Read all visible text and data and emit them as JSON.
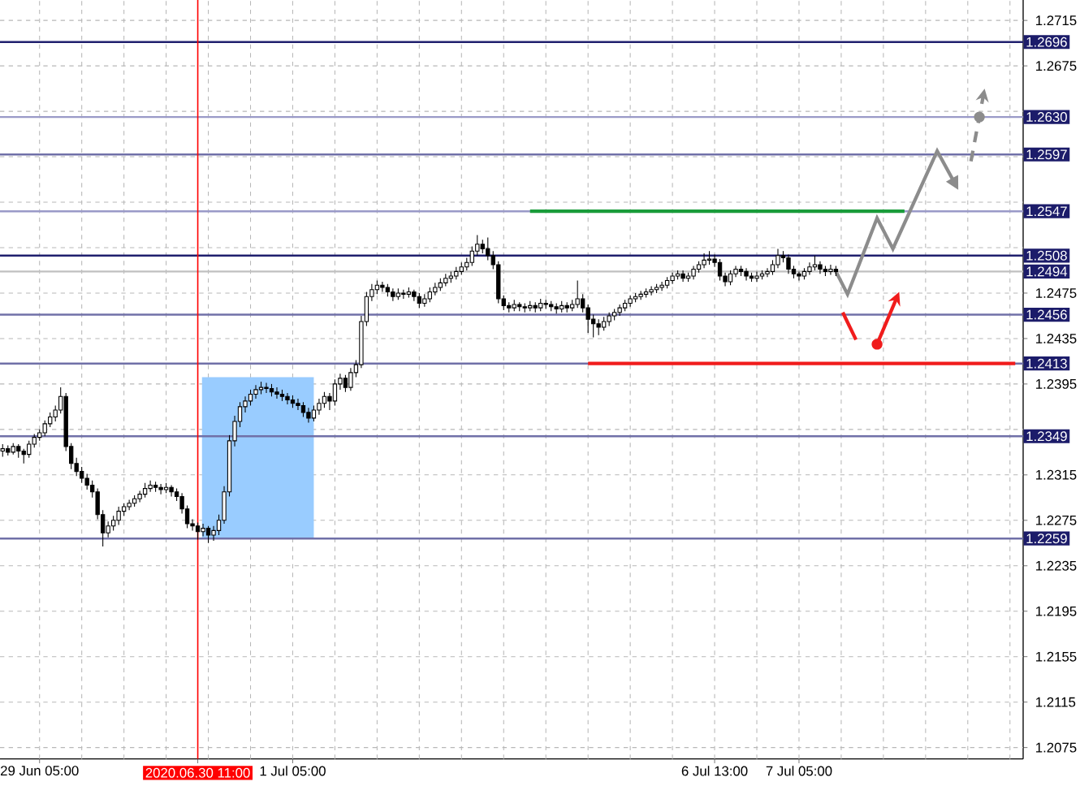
{
  "chart_data": {
    "type": "candlestick",
    "color": "#000000",
    "grid": true,
    "categories": [
      null,
      null,
      null,
      null,
      null,
      null,
      null,
      "29 Jun 05:00",
      null,
      null,
      null,
      null,
      null,
      null,
      null,
      null,
      null,
      null,
      null,
      null,
      null,
      null,
      null,
      null,
      null,
      null,
      null,
      null,
      null,
      null,
      null,
      null,
      null,
      null,
      null,
      null,
      null,
      "2020.06.30 11:00",
      null,
      null,
      null,
      null,
      null,
      null,
      null,
      null,
      null,
      null,
      null,
      null,
      null,
      null,
      null,
      null,
      null,
      "1 Jul 05:00",
      null,
      null,
      null,
      null,
      null,
      null,
      null,
      null,
      null,
      null,
      null,
      null,
      null,
      null,
      null,
      null,
      null,
      null,
      null,
      null,
      null,
      null,
      null,
      null,
      null,
      null,
      null,
      null,
      null,
      null,
      null,
      null,
      null,
      null,
      null,
      null,
      null,
      null,
      null,
      null,
      null,
      null,
      null,
      null,
      null,
      null,
      null,
      null,
      null,
      null,
      null,
      null,
      null,
      null,
      null,
      null,
      null,
      null,
      null,
      null,
      null,
      null,
      null,
      null,
      null,
      null,
      null,
      null,
      null,
      null,
      null,
      null,
      null,
      null,
      null,
      null,
      null,
      null,
      null,
      "6 Jul 13:00",
      null,
      null,
      null,
      null,
      null,
      null,
      null,
      null,
      null,
      null,
      null,
      null,
      null,
      null,
      null,
      "7 Jul 05:00",
      null,
      null,
      null,
      null,
      null,
      null,
      null,
      null,
      null,
      null,
      null,
      null,
      null,
      null,
      null,
      null,
      null,
      null,
      null,
      null,
      null,
      null,
      null,
      null,
      null,
      null,
      null,
      null,
      null,
      null,
      null,
      null,
      null,
      null,
      null,
      null,
      null,
      null,
      null,
      null,
      null,
      null
    ],
    "ohlc": [
      [
        1.2336,
        1.2342,
        1.2331,
        1.2338
      ],
      [
        1.2338,
        1.2341,
        1.2332,
        1.2335
      ],
      [
        1.2335,
        1.2343,
        1.2333,
        1.234
      ],
      [
        1.234,
        1.2342,
        1.233,
        1.2336
      ],
      [
        1.2336,
        1.2338,
        1.2325,
        1.2333
      ],
      [
        1.2333,
        1.2345,
        1.233,
        1.2342
      ],
      [
        1.2342,
        1.2351,
        1.2339,
        1.2348
      ],
      [
        1.2348,
        1.2355,
        1.2345,
        1.2352
      ],
      [
        1.2352,
        1.2363,
        1.2349,
        1.236
      ],
      [
        1.236,
        1.237,
        1.2357,
        1.2366
      ],
      [
        1.2366,
        1.2376,
        1.2362,
        1.2372
      ],
      [
        1.2372,
        1.2392,
        1.2369,
        1.2384
      ],
      [
        1.2384,
        1.2387,
        1.2336,
        1.234
      ],
      [
        1.234,
        1.2343,
        1.232,
        1.2325
      ],
      [
        1.2325,
        1.233,
        1.2314,
        1.2318
      ],
      [
        1.2318,
        1.2322,
        1.2308,
        1.2312
      ],
      [
        1.2312,
        1.2316,
        1.2302,
        1.2306
      ],
      [
        1.2306,
        1.231,
        1.2295,
        1.23
      ],
      [
        1.23,
        1.2303,
        1.2276,
        1.228
      ],
      [
        1.228,
        1.2284,
        1.2252,
        1.2264
      ],
      [
        1.2264,
        1.2274,
        1.226,
        1.227
      ],
      [
        1.227,
        1.2279,
        1.2266,
        1.2275
      ],
      [
        1.2275,
        1.2287,
        1.2271,
        1.2283
      ],
      [
        1.2283,
        1.229,
        1.2279,
        1.2287
      ],
      [
        1.2287,
        1.2293,
        1.2284,
        1.229
      ],
      [
        1.229,
        1.2297,
        1.2287,
        1.2294
      ],
      [
        1.2294,
        1.2301,
        1.2291,
        1.2298
      ],
      [
        1.2298,
        1.2308,
        1.2295,
        1.2303
      ],
      [
        1.2303,
        1.231,
        1.23,
        1.2306
      ],
      [
        1.2306,
        1.2309,
        1.23,
        1.2304
      ],
      [
        1.2304,
        1.2307,
        1.2298,
        1.2302
      ],
      [
        1.2302,
        1.2308,
        1.2299,
        1.2304
      ],
      [
        1.2304,
        1.2306,
        1.2296,
        1.23
      ],
      [
        1.23,
        1.2303,
        1.2292,
        1.2296
      ],
      [
        1.2296,
        1.2299,
        1.2281,
        1.2285
      ],
      [
        1.2285,
        1.2288,
        1.2268,
        1.2272
      ],
      [
        1.2272,
        1.2276,
        1.2266,
        1.227
      ],
      [
        1.227,
        1.2273,
        1.2258,
        1.2265
      ],
      [
        1.2265,
        1.2272,
        1.2261,
        1.2268
      ],
      [
        1.2268,
        1.227,
        1.2255,
        1.2262
      ],
      [
        1.2262,
        1.227,
        1.2257,
        1.2266
      ],
      [
        1.2266,
        1.228,
        1.2262,
        1.2275
      ],
      [
        1.2275,
        1.2305,
        1.2272,
        1.23
      ],
      [
        1.23,
        1.235,
        1.2296,
        1.2345
      ],
      [
        1.2345,
        1.2367,
        1.234,
        1.2362
      ],
      [
        1.2362,
        1.2379,
        1.2357,
        1.2375
      ],
      [
        1.2375,
        1.2384,
        1.237,
        1.238
      ],
      [
        1.238,
        1.239,
        1.2376,
        1.2386
      ],
      [
        1.2386,
        1.2394,
        1.2382,
        1.239
      ],
      [
        1.239,
        1.2397,
        1.2386,
        1.2392
      ],
      [
        1.2392,
        1.2396,
        1.2387,
        1.2391
      ],
      [
        1.2391,
        1.2395,
        1.2384,
        1.2388
      ],
      [
        1.2388,
        1.2392,
        1.2382,
        1.2386
      ],
      [
        1.2386,
        1.239,
        1.238,
        1.2384
      ],
      [
        1.2384,
        1.2387,
        1.2377,
        1.2381
      ],
      [
        1.2381,
        1.2385,
        1.2374,
        1.2378
      ],
      [
        1.2378,
        1.2382,
        1.2372,
        1.2376
      ],
      [
        1.2376,
        1.2379,
        1.2366,
        1.237
      ],
      [
        1.237,
        1.2374,
        1.2361,
        1.2365
      ],
      [
        1.2365,
        1.2376,
        1.2362,
        1.2372
      ],
      [
        1.2372,
        1.2382,
        1.2368,
        1.2378
      ],
      [
        1.2378,
        1.2388,
        1.2374,
        1.2384
      ],
      [
        1.2384,
        1.2387,
        1.2372,
        1.238
      ],
      [
        1.238,
        1.2399,
        1.2376,
        1.2395
      ],
      [
        1.2395,
        1.2404,
        1.239,
        1.24
      ],
      [
        1.24,
        1.2403,
        1.2388,
        1.2392
      ],
      [
        1.2392,
        1.2409,
        1.2389,
        1.2405
      ],
      [
        1.2405,
        1.2416,
        1.2401,
        1.2412
      ],
      [
        1.2412,
        1.2455,
        1.2409,
        1.245
      ],
      [
        1.245,
        1.2476,
        1.2446,
        1.2472
      ],
      [
        1.2472,
        1.2483,
        1.2468,
        1.2478
      ],
      [
        1.2478,
        1.2486,
        1.2474,
        1.2482
      ],
      [
        1.2482,
        1.2485,
        1.2476,
        1.248
      ],
      [
        1.248,
        1.2483,
        1.2472,
        1.2476
      ],
      [
        1.2476,
        1.2479,
        1.2468,
        1.2472
      ],
      [
        1.2472,
        1.2479,
        1.2469,
        1.2475
      ],
      [
        1.2475,
        1.2478,
        1.247,
        1.2474
      ],
      [
        1.2474,
        1.248,
        1.2471,
        1.2476
      ],
      [
        1.2476,
        1.2478,
        1.2468,
        1.2472
      ],
      [
        1.2472,
        1.2475,
        1.2462,
        1.2466
      ],
      [
        1.2466,
        1.2474,
        1.2463,
        1.247
      ],
      [
        1.247,
        1.248,
        1.2467,
        1.2476
      ],
      [
        1.2476,
        1.2484,
        1.2473,
        1.248
      ],
      [
        1.248,
        1.2488,
        1.2477,
        1.2484
      ],
      [
        1.2484,
        1.2492,
        1.2481,
        1.2488
      ],
      [
        1.2488,
        1.2494,
        1.2484,
        1.249
      ],
      [
        1.249,
        1.2498,
        1.2487,
        1.2494
      ],
      [
        1.2494,
        1.2502,
        1.2491,
        1.2498
      ],
      [
        1.2498,
        1.2506,
        1.2495,
        1.2502
      ],
      [
        1.2502,
        1.2516,
        1.2499,
        1.2512
      ],
      [
        1.2512,
        1.2526,
        1.2508,
        1.2518
      ],
      [
        1.2518,
        1.2522,
        1.251,
        1.2514
      ],
      [
        1.2514,
        1.2524,
        1.2504,
        1.2508
      ],
      [
        1.2508,
        1.2512,
        1.2496,
        1.25
      ],
      [
        1.25,
        1.2503,
        1.2466,
        1.247
      ],
      [
        1.247,
        1.2473,
        1.246,
        1.2464
      ],
      [
        1.2464,
        1.2467,
        1.2458,
        1.2462
      ],
      [
        1.2462,
        1.2469,
        1.2459,
        1.2465
      ],
      [
        1.2465,
        1.2467,
        1.2459,
        1.2463
      ],
      [
        1.2463,
        1.2466,
        1.2458,
        1.2462
      ],
      [
        1.2462,
        1.2468,
        1.2459,
        1.2464
      ],
      [
        1.2464,
        1.2467,
        1.2458,
        1.2462
      ],
      [
        1.2462,
        1.247,
        1.2459,
        1.2466
      ],
      [
        1.2466,
        1.2469,
        1.2461,
        1.2465
      ],
      [
        1.2465,
        1.2468,
        1.2459,
        1.2463
      ],
      [
        1.2463,
        1.2466,
        1.2457,
        1.2461
      ],
      [
        1.2461,
        1.2468,
        1.2458,
        1.2464
      ],
      [
        1.2464,
        1.2467,
        1.2458,
        1.2462
      ],
      [
        1.2462,
        1.2469,
        1.2459,
        1.2465
      ],
      [
        1.2465,
        1.2486,
        1.2462,
        1.247
      ],
      [
        1.247,
        1.2474,
        1.2458,
        1.2462
      ],
      [
        1.2462,
        1.2465,
        1.244,
        1.2452
      ],
      [
        1.2452,
        1.2456,
        1.2436,
        1.2448
      ],
      [
        1.2448,
        1.2452,
        1.2438,
        1.2445
      ],
      [
        1.2445,
        1.2454,
        1.2442,
        1.245
      ],
      [
        1.245,
        1.2458,
        1.2446,
        1.2455
      ],
      [
        1.2455,
        1.2461,
        1.2451,
        1.2458
      ],
      [
        1.2458,
        1.2465,
        1.2455,
        1.2462
      ],
      [
        1.2462,
        1.2469,
        1.2459,
        1.2466
      ],
      [
        1.2466,
        1.2473,
        1.2463,
        1.247
      ],
      [
        1.247,
        1.2475,
        1.2467,
        1.2472
      ],
      [
        1.2472,
        1.2477,
        1.2469,
        1.2474
      ],
      [
        1.2474,
        1.2479,
        1.2471,
        1.2476
      ],
      [
        1.2476,
        1.2481,
        1.2473,
        1.2478
      ],
      [
        1.2478,
        1.2483,
        1.2475,
        1.248
      ],
      [
        1.248,
        1.2485,
        1.2477,
        1.2482
      ],
      [
        1.2482,
        1.2489,
        1.2479,
        1.2486
      ],
      [
        1.2486,
        1.2493,
        1.2483,
        1.249
      ],
      [
        1.249,
        1.2495,
        1.2487,
        1.2492
      ],
      [
        1.2492,
        1.2495,
        1.2485,
        1.2488
      ],
      [
        1.2488,
        1.2493,
        1.2485,
        1.249
      ],
      [
        1.249,
        1.2499,
        1.2487,
        1.2496
      ],
      [
        1.2496,
        1.2503,
        1.2493,
        1.25
      ],
      [
        1.25,
        1.251,
        1.2497,
        1.2504
      ],
      [
        1.2504,
        1.2512,
        1.25,
        1.2505
      ],
      [
        1.2505,
        1.2509,
        1.2498,
        1.2502
      ],
      [
        1.2502,
        1.2505,
        1.2486,
        1.249
      ],
      [
        1.249,
        1.2493,
        1.2481,
        1.2485
      ],
      [
        1.2485,
        1.2495,
        1.2482,
        1.2492
      ],
      [
        1.2492,
        1.2499,
        1.2489,
        1.2496
      ],
      [
        1.2496,
        1.2499,
        1.249,
        1.2494
      ],
      [
        1.2494,
        1.2497,
        1.2486,
        1.249
      ],
      [
        1.249,
        1.2493,
        1.2485,
        1.2488
      ],
      [
        1.2488,
        1.2494,
        1.2485,
        1.249
      ],
      [
        1.249,
        1.2495,
        1.2487,
        1.2492
      ],
      [
        1.2492,
        1.2497,
        1.2489,
        1.2494
      ],
      [
        1.2494,
        1.2504,
        1.2491,
        1.25
      ],
      [
        1.25,
        1.2514,
        1.2497,
        1.2508
      ],
      [
        1.2508,
        1.2512,
        1.2502,
        1.2506
      ],
      [
        1.2506,
        1.2509,
        1.2492,
        1.2496
      ],
      [
        1.2496,
        1.2499,
        1.2488,
        1.2492
      ],
      [
        1.2492,
        1.2494,
        1.2486,
        1.249
      ],
      [
        1.249,
        1.2497,
        1.2487,
        1.2494
      ],
      [
        1.2494,
        1.2502,
        1.2491,
        1.2498
      ],
      [
        1.2498,
        1.2508,
        1.2495,
        1.25
      ],
      [
        1.25,
        1.2503,
        1.2492,
        1.2496
      ],
      [
        1.2496,
        1.2499,
        1.249,
        1.2494
      ],
      [
        1.2494,
        1.25,
        1.2491,
        1.2496
      ],
      [
        1.2496,
        1.2499,
        1.249,
        1.2494
      ],
      null,
      null,
      null,
      null,
      null,
      null,
      null,
      null,
      null,
      null,
      null,
      null,
      null,
      null,
      null,
      null,
      null,
      null,
      null,
      null,
      null,
      null,
      null,
      null,
      null,
      null,
      null,
      null,
      null,
      null,
      null,
      null,
      null,
      null,
      null
    ],
    "series": [
      {
        "type": "line",
        "color": "#1a9c3a",
        "values": [
          null,
          null,
          null,
          null,
          null,
          null,
          null,
          null,
          null,
          null,
          null,
          null,
          null,
          null,
          null,
          null,
          null,
          null,
          null,
          null,
          null,
          null,
          null,
          null,
          null,
          null,
          null,
          null,
          null,
          null,
          null,
          null,
          null,
          null,
          null,
          null,
          null,
          null,
          null,
          null,
          null,
          null,
          null,
          null,
          null,
          null,
          null,
          null,
          null,
          null,
          null,
          null,
          null,
          null,
          null,
          null,
          null,
          null,
          null,
          null,
          null,
          null,
          null,
          null,
          null,
          null,
          null,
          null,
          null,
          null,
          null,
          null,
          null,
          null,
          null,
          null,
          null,
          null,
          null,
          null,
          null,
          null,
          null,
          null,
          null,
          null,
          null,
          null,
          null,
          null,
          null,
          null,
          null,
          null,
          null,
          null,
          null,
          null,
          null,
          null,
          1.2547,
          1.2547,
          1.2547,
          1.2547,
          1.2547,
          1.2547,
          1.2547,
          1.2547,
          1.2547,
          1.2547,
          1.2547,
          1.2547,
          1.2547,
          1.2547,
          1.2547,
          1.2547,
          1.2547,
          1.2547,
          1.2547,
          1.2547,
          1.2547,
          1.2547,
          1.2547,
          1.2547,
          1.2547,
          1.2547,
          1.2547,
          1.2547,
          1.2547,
          1.2547,
          1.2547,
          1.2547,
          1.2547,
          1.2547,
          1.2547,
          1.2547,
          1.2547,
          1.2547,
          1.2547,
          1.2547,
          1.2547,
          1.2547,
          1.2547,
          1.2547,
          1.2547,
          1.2547,
          1.2547,
          1.2547,
          1.2547,
          1.2547,
          1.2547,
          1.2547,
          1.2547,
          1.2547,
          1.2547,
          1.2547,
          1.2547,
          1.2547,
          1.2547,
          1.2547,
          1.2547,
          1.2547,
          1.2547,
          1.2547,
          1.2547,
          1.2547,
          1.2547,
          1.2547,
          1.2547,
          1.2547,
          1.2547,
          1.2547,
          null,
          null,
          null,
          null,
          null,
          null,
          null,
          null,
          null,
          null,
          null,
          null,
          null,
          null,
          null,
          null,
          null,
          null,
          null,
          null,
          null,
          null
        ]
      },
      {
        "type": "line",
        "color": "#f01c1c",
        "values": [
          null,
          null,
          null,
          null,
          null,
          null,
          null,
          null,
          null,
          null,
          null,
          null,
          null,
          null,
          null,
          null,
          null,
          null,
          null,
          null,
          null,
          null,
          null,
          null,
          null,
          null,
          null,
          null,
          null,
          null,
          null,
          null,
          null,
          null,
          null,
          null,
          null,
          null,
          null,
          null,
          null,
          null,
          null,
          null,
          null,
          null,
          null,
          null,
          null,
          null,
          null,
          null,
          null,
          null,
          null,
          null,
          null,
          null,
          null,
          null,
          null,
          null,
          null,
          null,
          null,
          null,
          null,
          null,
          null,
          null,
          null,
          null,
          null,
          null,
          null,
          null,
          null,
          null,
          null,
          null,
          null,
          null,
          null,
          null,
          null,
          null,
          null,
          null,
          null,
          null,
          null,
          null,
          null,
          null,
          null,
          null,
          null,
          null,
          null,
          null,
          null,
          null,
          null,
          null,
          null,
          null,
          null,
          null,
          null,
          null,
          null,
          1.2413,
          1.2413,
          1.2413,
          1.2413,
          1.2413,
          1.2413,
          1.2413,
          1.2413,
          1.2413,
          1.2413,
          1.2413,
          1.2413,
          1.2413,
          1.2413,
          1.2413,
          1.2413,
          1.2413,
          1.2413,
          1.2413,
          1.2413,
          1.2413,
          1.2413,
          1.2413,
          1.2413,
          1.2413,
          1.2413,
          1.2413,
          1.2413,
          1.2413,
          1.2413,
          1.2413,
          1.2413,
          1.2413,
          1.2413,
          1.2413,
          1.2413,
          1.2413,
          1.2413,
          1.2413,
          1.2413,
          1.2413,
          1.2413,
          1.2413,
          1.2413,
          1.2413,
          1.2413,
          1.2413,
          1.2413,
          1.2413,
          1.2413,
          1.2413,
          1.2413,
          1.2413,
          1.2413,
          1.2413,
          1.2413,
          1.2413,
          1.2413,
          1.2413,
          1.2413,
          1.2413,
          1.2413,
          1.2413,
          1.2413,
          1.2413,
          1.2413,
          1.2413,
          1.2413,
          1.2413,
          1.2413,
          1.2413,
          1.2413,
          1.2413,
          1.2413,
          1.2413,
          1.2413,
          1.2413,
          1.2413,
          1.2413,
          1.2413,
          1.2413,
          1.2413,
          null
        ]
      }
    ],
    "ylim": [
      1.2065,
      1.2733
    ],
    "yticks": [
      1.2075,
      1.2115,
      1.2155,
      1.2195,
      1.2235,
      1.2275,
      1.2315,
      1.2395,
      1.2435,
      1.2475,
      1.2675,
      1.2715
    ],
    "ref_lines": [
      {
        "axis": "y",
        "value": 1.2696,
        "label": "1.2696",
        "color": "#20206e"
      },
      {
        "axis": "y",
        "value": 1.263,
        "label": "1.2630",
        "color": "#9a9ac8"
      },
      {
        "axis": "y",
        "value": 1.2597,
        "label": "1.2597",
        "color": "#7070a8"
      },
      {
        "axis": "y",
        "value": 1.2547,
        "label": "1.2547",
        "color": "#9a9ac8"
      },
      {
        "axis": "y",
        "value": 1.2508,
        "label": "1.2508",
        "color": "#20206e"
      },
      {
        "axis": "y",
        "value": 1.2494,
        "label": "1.2494",
        "color": "#c0c0c0"
      },
      {
        "axis": "y",
        "value": 1.2456,
        "label": "1.2456",
        "color": "#7070a8"
      },
      {
        "axis": "y",
        "value": 1.2413,
        "label": "1.2413",
        "color": "#7070a8"
      },
      {
        "axis": "y",
        "value": 1.2349,
        "label": "1.2349",
        "color": "#7070a8"
      },
      {
        "axis": "y",
        "value": 1.2259,
        "label": "1.2259",
        "color": "#7070a8"
      },
      {
        "axis": "x",
        "value": "2020.06.30 11:00",
        "color": "#ff0000"
      }
    ]
  }
}
